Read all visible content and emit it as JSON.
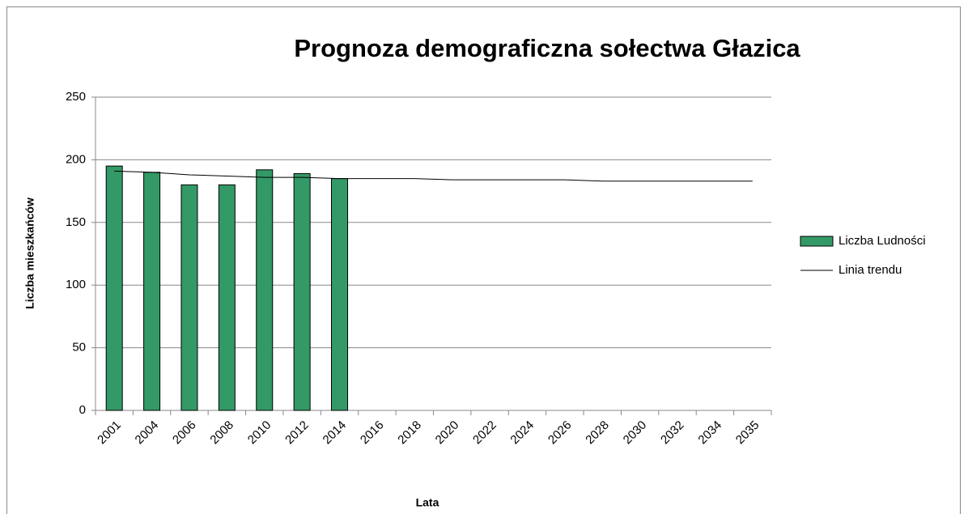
{
  "chart_data": {
    "type": "bar",
    "title": "Prognoza demograficzna sołectwa Głazica",
    "x_label": "Lata",
    "y_label": "Liczba mieszkańców",
    "categories": [
      "2001",
      "2004",
      "2006",
      "2008",
      "2010",
      "2012",
      "2014",
      "2016",
      "2018",
      "2020",
      "2022",
      "2024",
      "2026",
      "2028",
      "2030",
      "2032",
      "2034",
      "2035"
    ],
    "series": [
      {
        "name": "Liczba Ludności",
        "type": "bar",
        "color": "#339966",
        "values": [
          195,
          190,
          180,
          180,
          192,
          189,
          185,
          null,
          null,
          null,
          null,
          null,
          null,
          null,
          null,
          null,
          null,
          null
        ]
      },
      {
        "name": "Linia trendu",
        "type": "line",
        "color": "#000000",
        "values": [
          191,
          190,
          188,
          187,
          186,
          186,
          185,
          185,
          185,
          184,
          184,
          184,
          184,
          183,
          183,
          183,
          183,
          183
        ]
      }
    ],
    "ylim": [
      0,
      250
    ],
    "yticks": [
      0,
      50,
      100,
      150,
      200,
      250
    ],
    "grid": true,
    "legend": "right"
  }
}
